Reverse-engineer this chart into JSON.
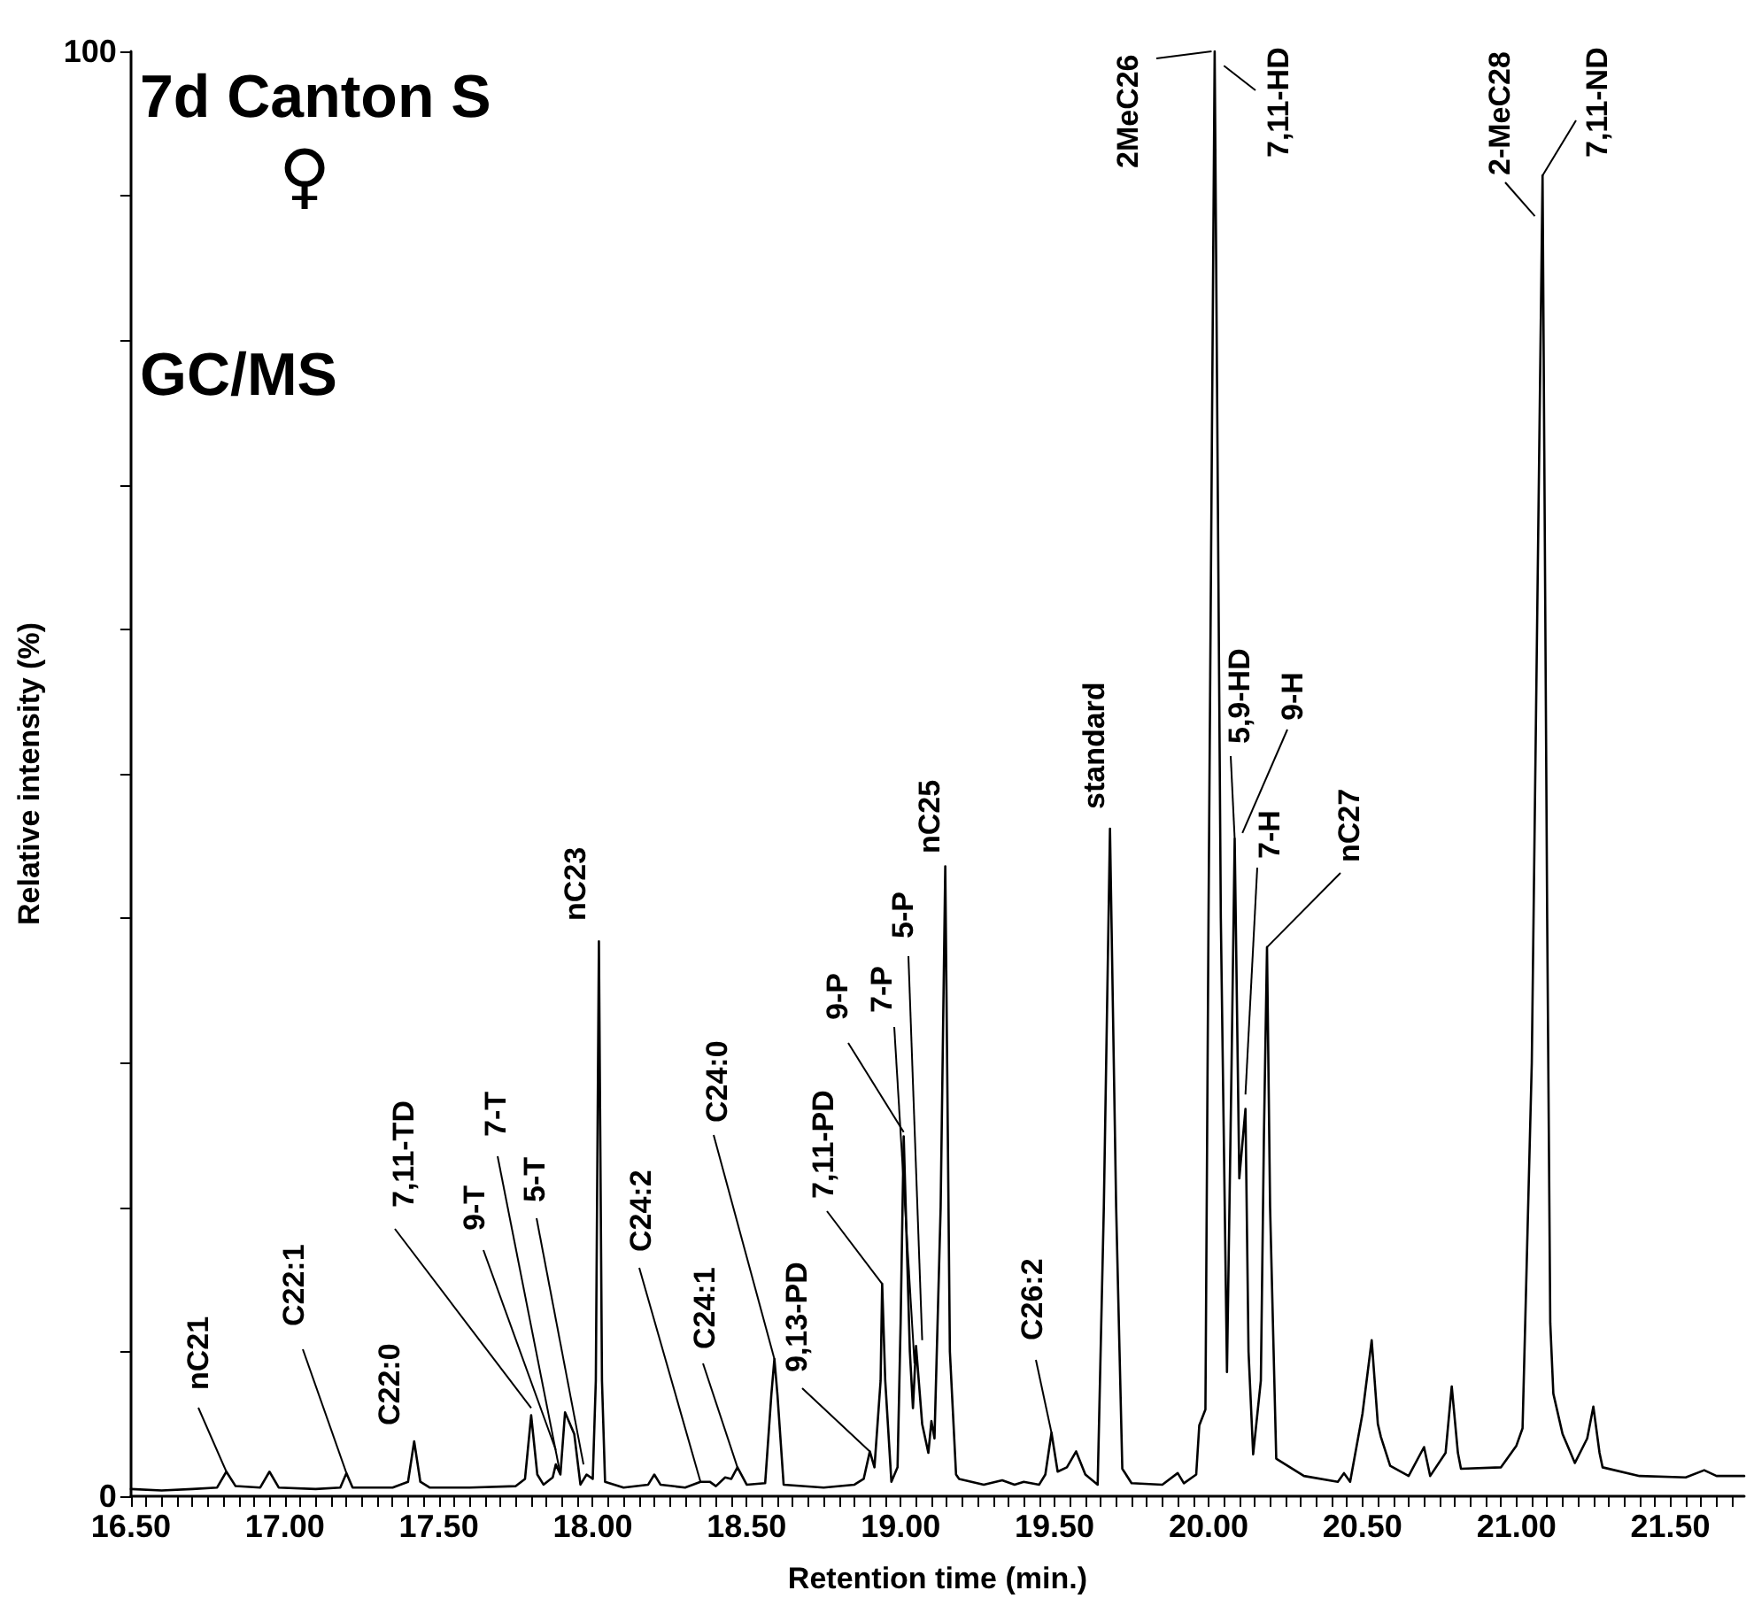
{
  "chart_data": {
    "type": "line",
    "title": "7d Canton S",
    "subtitle": "GC/MS",
    "xlabel": "Retention time (min.)",
    "ylabel": "Relative intensity (%)",
    "color": "#000000",
    "marker": "none",
    "line_style": "solid",
    "grid": false,
    "xlim": [
      16.5,
      21.74
    ],
    "ylim": [
      0,
      100
    ],
    "xticks": [
      {
        "value": 16.5,
        "label": "16.50"
      },
      {
        "value": 16.55,
        "label": null
      },
      {
        "value": 16.6,
        "label": null
      },
      {
        "value": 16.65,
        "label": null
      },
      {
        "value": 16.7,
        "label": null
      },
      {
        "value": 16.75,
        "label": null
      },
      {
        "value": 16.8,
        "label": null
      },
      {
        "value": 16.85,
        "label": null
      },
      {
        "value": 16.9,
        "label": null
      },
      {
        "value": 16.95,
        "label": null
      },
      {
        "value": 17,
        "label": "17.00"
      },
      {
        "value": 17.05,
        "label": null
      },
      {
        "value": 17.1,
        "label": null
      },
      {
        "value": 17.15,
        "label": null
      },
      {
        "value": 17.2,
        "label": null
      },
      {
        "value": 17.25,
        "label": null
      },
      {
        "value": 17.3,
        "label": null
      },
      {
        "value": 17.35,
        "label": null
      },
      {
        "value": 17.4,
        "label": null
      },
      {
        "value": 17.45,
        "label": null
      },
      {
        "value": 17.5,
        "label": "17.50"
      },
      {
        "value": 17.55,
        "label": null
      },
      {
        "value": 17.6,
        "label": null
      },
      {
        "value": 17.65,
        "label": null
      },
      {
        "value": 17.7,
        "label": null
      },
      {
        "value": 17.75,
        "label": null
      },
      {
        "value": 17.8,
        "label": null
      },
      {
        "value": 17.85,
        "label": null
      },
      {
        "value": 17.9,
        "label": null
      },
      {
        "value": 17.95,
        "label": null
      },
      {
        "value": 18,
        "label": "18.00"
      },
      {
        "value": 18.05,
        "label": null
      },
      {
        "value": 18.1,
        "label": null
      },
      {
        "value": 18.15,
        "label": null
      },
      {
        "value": 18.2,
        "label": null
      },
      {
        "value": 18.25,
        "label": null
      },
      {
        "value": 18.3,
        "label": null
      },
      {
        "value": 18.35,
        "label": null
      },
      {
        "value": 18.4,
        "label": null
      },
      {
        "value": 18.45,
        "label": null
      },
      {
        "value": 18.5,
        "label": "18.50"
      },
      {
        "value": 18.55,
        "label": null
      },
      {
        "value": 18.6,
        "label": null
      },
      {
        "value": 18.65,
        "label": null
      },
      {
        "value": 18.7,
        "label": null
      },
      {
        "value": 18.75,
        "label": null
      },
      {
        "value": 18.8,
        "label": null
      },
      {
        "value": 18.85,
        "label": null
      },
      {
        "value": 18.9,
        "label": null
      },
      {
        "value": 18.95,
        "label": null
      },
      {
        "value": 19,
        "label": "19.00"
      },
      {
        "value": 19.05,
        "label": null
      },
      {
        "value": 19.1,
        "label": null
      },
      {
        "value": 19.15,
        "label": null
      },
      {
        "value": 19.2,
        "label": null
      },
      {
        "value": 19.25,
        "label": null
      },
      {
        "value": 19.3,
        "label": null
      },
      {
        "value": 19.35,
        "label": null
      },
      {
        "value": 19.4,
        "label": null
      },
      {
        "value": 19.45,
        "label": null
      },
      {
        "value": 19.5,
        "label": "19.50"
      },
      {
        "value": 19.55,
        "label": null
      },
      {
        "value": 19.6,
        "label": null
      },
      {
        "value": 19.65,
        "label": null
      },
      {
        "value": 19.7,
        "label": null
      },
      {
        "value": 19.75,
        "label": null
      },
      {
        "value": 19.8,
        "label": null
      },
      {
        "value": 19.85,
        "label": null
      },
      {
        "value": 19.9,
        "label": null
      },
      {
        "value": 19.95,
        "label": null
      },
      {
        "value": 20,
        "label": "20.00"
      },
      {
        "value": 20.05,
        "label": null
      },
      {
        "value": 20.1,
        "label": null
      },
      {
        "value": 20.15,
        "label": null
      },
      {
        "value": 20.2,
        "label": null
      },
      {
        "value": 20.25,
        "label": null
      },
      {
        "value": 20.3,
        "label": null
      },
      {
        "value": 20.35,
        "label": null
      },
      {
        "value": 20.4,
        "label": null
      },
      {
        "value": 20.45,
        "label": null
      },
      {
        "value": 20.5,
        "label": "20.50"
      },
      {
        "value": 20.55,
        "label": null
      },
      {
        "value": 20.6,
        "label": null
      },
      {
        "value": 20.65,
        "label": null
      },
      {
        "value": 20.7,
        "label": null
      },
      {
        "value": 20.75,
        "label": null
      },
      {
        "value": 20.8,
        "label": null
      },
      {
        "value": 20.85,
        "label": null
      },
      {
        "value": 20.9,
        "label": null
      },
      {
        "value": 20.95,
        "label": null
      },
      {
        "value": 21,
        "label": "21.00"
      },
      {
        "value": 21.05,
        "label": null
      },
      {
        "value": 21.1,
        "label": null
      },
      {
        "value": 21.15,
        "label": null
      },
      {
        "value": 21.2,
        "label": null
      },
      {
        "value": 21.25,
        "label": null
      },
      {
        "value": 21.3,
        "label": null
      },
      {
        "value": 21.35,
        "label": null
      },
      {
        "value": 21.4,
        "label": null
      },
      {
        "value": 21.45,
        "label": null
      },
      {
        "value": 21.5,
        "label": "21.50"
      },
      {
        "value": 21.55,
        "label": null
      },
      {
        "value": 21.6,
        "label": null
      },
      {
        "value": 21.65,
        "label": null
      },
      {
        "value": 21.7,
        "label": null
      }
    ],
    "yticks": [
      0,
      {
        "value": 10,
        "label": null
      },
      {
        "value": 20,
        "label": null
      },
      {
        "value": 30,
        "label": null
      },
      {
        "value": 40,
        "label": null
      },
      {
        "value": 50,
        "label": null
      },
      {
        "value": 60,
        "label": null
      },
      {
        "value": 70,
        "label": null
      },
      {
        "value": 80,
        "label": null
      },
      {
        "value": 90,
        "label": null
      },
      100
    ],
    "x": [
      16.5,
      16.6,
      16.7,
      16.78,
      16.81,
      16.84,
      16.92,
      16.95,
      16.98,
      17.1,
      17.18,
      17.2,
      17.22,
      17.35,
      17.4,
      17.42,
      17.44,
      17.47,
      17.6,
      17.75,
      17.78,
      17.8,
      17.82,
      17.84,
      17.87,
      17.88,
      17.895,
      17.91,
      17.94,
      17.96,
      17.98,
      18.0,
      18.01,
      18.02,
      18.03,
      18.04,
      18.1,
      18.18,
      18.2,
      18.22,
      18.3,
      18.35,
      18.38,
      18.4,
      18.43,
      18.45,
      18.47,
      18.5,
      18.56,
      18.58,
      18.59,
      18.6,
      18.62,
      18.75,
      18.85,
      18.88,
      18.9,
      18.915,
      18.935,
      18.94,
      18.95,
      18.97,
      18.99,
      19.0,
      19.01,
      19.03,
      19.04,
      19.05,
      19.07,
      19.09,
      19.1,
      19.11,
      19.13,
      19.145,
      19.16,
      19.18,
      19.19,
      19.27,
      19.33,
      19.37,
      19.4,
      19.45,
      19.47,
      19.49,
      19.51,
      19.54,
      19.57,
      19.6,
      19.64,
      19.66,
      19.68,
      19.7,
      19.72,
      19.75,
      19.85,
      19.9,
      19.92,
      19.96,
      19.97,
      19.99,
      20.0,
      20.02,
      20.04,
      20.06,
      20.075,
      20.085,
      20.1,
      20.12,
      20.13,
      20.145,
      20.17,
      20.18,
      20.19,
      20.2,
      20.22,
      20.31,
      20.42,
      20.44,
      20.46,
      20.5,
      20.53,
      20.55,
      20.56,
      20.59,
      20.65,
      20.7,
      20.72,
      20.77,
      20.79,
      20.81,
      20.82,
      20.95,
      21.0,
      21.02,
      21.05,
      21.085,
      21.1,
      21.11,
      21.12,
      21.15,
      21.19,
      21.23,
      21.25,
      21.27,
      21.28,
      21.4,
      21.55,
      21.61,
      21.65,
      21.74
    ],
    "values": [
      0.5,
      0.4,
      0.5,
      0.6,
      1.7,
      0.7,
      0.6,
      1.7,
      0.6,
      0.5,
      0.6,
      1.6,
      0.6,
      0.6,
      1.0,
      3.8,
      1.0,
      0.6,
      0.6,
      0.7,
      1.2,
      5.6,
      1.5,
      0.8,
      1.3,
      2.2,
      1.5,
      5.8,
      4.3,
      0.8,
      1.5,
      1.2,
      8,
      38.4,
      8,
      1.0,
      0.6,
      0.8,
      1.5,
      0.8,
      0.6,
      1.0,
      1.0,
      0.7,
      1.3,
      1.2,
      2.0,
      0.8,
      0.9,
      7,
      9.5,
      7,
      0.8,
      0.6,
      0.8,
      1.2,
      3.1,
      2.0,
      8,
      14.7,
      8,
      1.0,
      2.0,
      12,
      24.9,
      10,
      6.1,
      10.4,
      5,
      3,
      5.2,
      4,
      20,
      43.6,
      10,
      1.5,
      1.2,
      0.8,
      1.1,
      0.8,
      1.0,
      0.8,
      1.5,
      4.4,
      1.7,
      2.0,
      3.1,
      1.5,
      0.8,
      20,
      46.2,
      20,
      1.9,
      0.9,
      0.8,
      1.6,
      0.9,
      1.5,
      4.9,
      6,
      40,
      100,
      40,
      8.6,
      30,
      45.5,
      22,
      26.8,
      10,
      2.9,
      8,
      25,
      38.0,
      20,
      2.6,
      1.4,
      1.0,
      1.6,
      1.0,
      5.7,
      10.8,
      5,
      4.1,
      2.1,
      1.4,
      3.4,
      1.4,
      3,
      7.6,
      3,
      1.9,
      2.0,
      3.5,
      4.7,
      30,
      91.4,
      40,
      12,
      7.1,
      4.3,
      2.3,
      4,
      6.2,
      3,
      2.0,
      1.4,
      1.3,
      1.8,
      1.4,
      1.4
    ],
    "annotations": [
      {
        "text": "nC21",
        "x": 16.81,
        "y": 1.7
      },
      {
        "text": "C22:1",
        "x": 17.2,
        "y": 1.6
      },
      {
        "text": "C22:0",
        "x": 17.42,
        "y": 3.8
      },
      {
        "text": "7,11-TD",
        "x": 17.8,
        "y": 6.1
      },
      {
        "text": "9-T",
        "x": 17.88,
        "y": 3.2
      },
      {
        "text": "7-T",
        "x": 17.895,
        "y": 1.5
      },
      {
        "text": "5-T",
        "x": 17.97,
        "y": 2.2
      },
      {
        "text": "nC23",
        "x": 18.02,
        "y": 38.4
      },
      {
        "text": "C24:2",
        "x": 18.35,
        "y": 1.0
      },
      {
        "text": "C24:1",
        "x": 18.47,
        "y": 2.0
      },
      {
        "text": "C24:0",
        "x": 18.59,
        "y": 9.5
      },
      {
        "text": "9,13-PD",
        "x": 18.9,
        "y": 3.1
      },
      {
        "text": "7,11-PD",
        "x": 18.94,
        "y": 14.7
      },
      {
        "text": "9-P",
        "x": 19.01,
        "y": 25.2
      },
      {
        "text": "7-P",
        "x": 19.045,
        "y": 9.2
      },
      {
        "text": "5-P",
        "x": 19.07,
        "y": 10.8
      },
      {
        "text": "nC25",
        "x": 19.145,
        "y": 43.6
      },
      {
        "text": "C26:2",
        "x": 19.49,
        "y": 4.4
      },
      {
        "text": "standard",
        "x": 19.68,
        "y": 46.2
      },
      {
        "text": "2MeC26",
        "x": 20.01,
        "y": 100
      },
      {
        "text": "7,11-HD",
        "x": 20.05,
        "y": 99
      },
      {
        "text": "5,9-HD",
        "x": 20.085,
        "y": 45.5
      },
      {
        "text": "9-H",
        "x": 20.11,
        "y": 45.9
      },
      {
        "text": "7-H",
        "x": 20.12,
        "y": 27.8
      },
      {
        "text": "nC27",
        "x": 20.19,
        "y": 38.0
      },
      {
        "text": "2-MeC28",
        "x": 21.06,
        "y": 88.6
      },
      {
        "text": "7,11-ND",
        "x": 21.085,
        "y": 91.4
      },
      "♀"
    ]
  }
}
